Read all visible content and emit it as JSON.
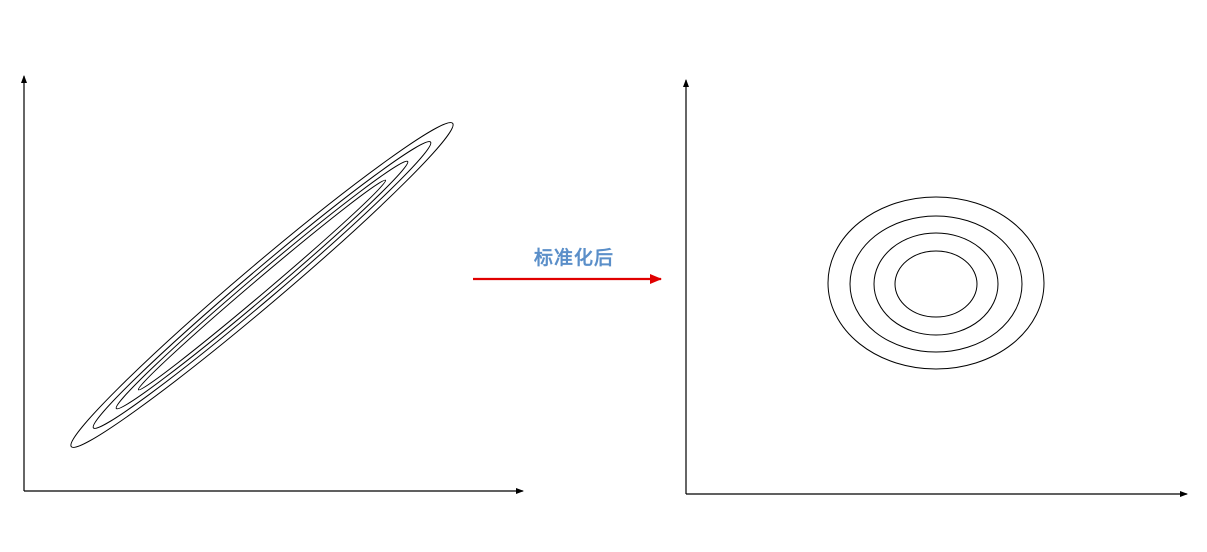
{
  "arrow": {
    "label": "标准化后",
    "label_color": "#5b8fc9",
    "color": "#e00000"
  },
  "left_plot": {
    "description_kind": "elongated-ellipse-contours",
    "contour_count": 4
  },
  "right_plot": {
    "description_kind": "round-ellipse-contours",
    "contour_count": 4
  },
  "colors": {
    "axis": "#000000",
    "contour": "#000000",
    "background": "#ffffff"
  }
}
